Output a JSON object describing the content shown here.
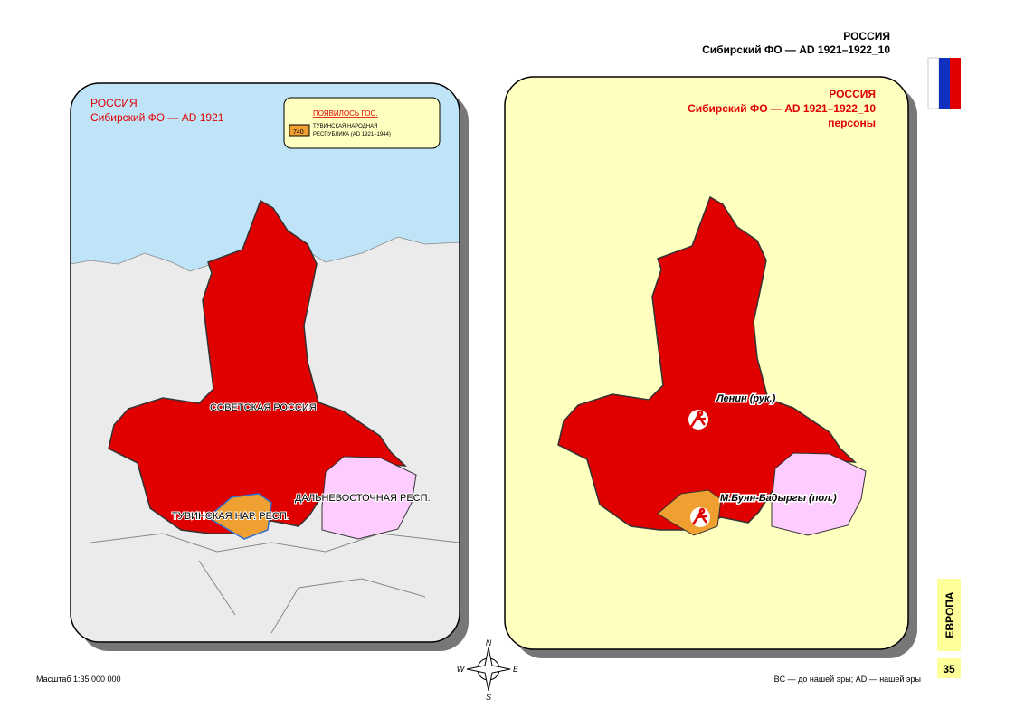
{
  "header": {
    "country": "РОССИЯ",
    "subtitle": "Сибирский ФО — AD 1921–1922_10"
  },
  "left_map": {
    "title": "РОССИЯ",
    "subtitle": "Сибирский ФО — AD 1921",
    "legend": {
      "heading": "ПОЯВИЛОСЬ ГОС.",
      "code": "740",
      "text_line1": "ТУВИНСКАЯ НАРОДНАЯ",
      "text_line2": "РЕСПУБЛИКА (AD 1921–1944)"
    },
    "labels": [
      "СОВЕТСКАЯ РОССИЯ",
      "ДАЛЬНЕВОСТОЧНАЯ РЕСП.",
      "ТУВИНСКАЯ НАР. РЕСП."
    ]
  },
  "right_map": {
    "title": "РОССИЯ",
    "subtitle": "Сибирский ФО — AD 1921–1922_10",
    "caption": "персоны",
    "persons": [
      "Ленин (рук.)",
      "М.Буян-Бадыргы (пол.)"
    ]
  },
  "compass": {
    "n": "N",
    "w": "W",
    "e": "E",
    "s": "S"
  },
  "footer": {
    "scale": "Масштаб 1:35 000 000",
    "era_note": "BC — до нашей эры; AD — нашей эры",
    "section": "ЕВРОПА",
    "page": "35"
  }
}
